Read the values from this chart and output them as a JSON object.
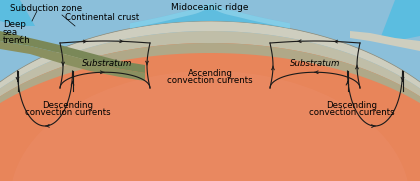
{
  "sky_color": "#8BBFDA",
  "mantle_top_color": "#E8855A",
  "mantle_bot_color": "#D4613A",
  "crust_outer_color": "#D8D8C8",
  "crust_inner_color": "#C5C5AA",
  "crust_deep_color": "#B8A888",
  "continental_color": "#8A9060",
  "continental_dark": "#6A7040",
  "ocean_blue": "#5BBDE0",
  "ridge_blue": "#5ABBE0",
  "arrow_color": "#1A1A1A",
  "figsize": [
    4.2,
    1.81
  ],
  "dpi": 100,
  "labels": {
    "subduction_zone": "Subduction zone",
    "continental_crust": "Continental crust",
    "deep_sea_trench_1": "Deep",
    "deep_sea_trench_2": "sea",
    "deep_sea_trench_3": "trench",
    "midoceanic_ridge": "Midoceanic ridge",
    "substratum_left": "Substratum",
    "substratum_right": "Substratum",
    "ascending_1": "Ascending",
    "ascending_2": "convection currents",
    "descending_left_1": "Descending",
    "descending_left_2": "convection currents",
    "descending_right_1": "Descending",
    "descending_right_2": "convection currents"
  }
}
